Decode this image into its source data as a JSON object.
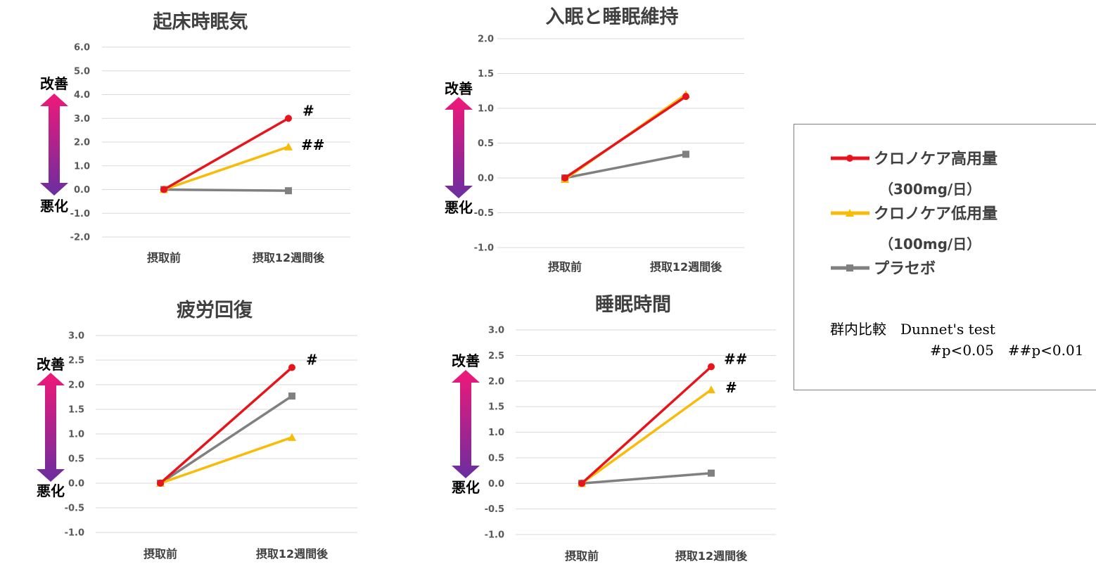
{
  "colors": {
    "high": "#e8141c",
    "low": "#f8bb07",
    "placebo": "#808080",
    "arrow_top": "#f01878",
    "arrow_bottom": "#6a2ea0",
    "grid": "#d9d9d9"
  },
  "annotations": {
    "up": "改善",
    "down": "悪化"
  },
  "legend": {
    "items": [
      {
        "label": "クロノケア高用量",
        "sub": "（300mg/日）",
        "marker": "circle",
        "color": "#e8141c"
      },
      {
        "label": "クロノケア低用量",
        "sub": "（100mg/日）",
        "marker": "triangle",
        "color": "#f8bb07"
      },
      {
        "label": "プラセボ",
        "sub": "",
        "marker": "square",
        "color": "#808080"
      }
    ],
    "note_line1": "群内比較　Dunnet's test",
    "note_line2": "#p<0.05　##p<0.01"
  },
  "chart_data": [
    {
      "type": "line",
      "title": "起床時眠気",
      "categories": [
        "摂取前",
        "摂取12週間後"
      ],
      "ylim": [
        -2.0,
        6.0
      ],
      "ystep": 1.0,
      "series": [
        {
          "name": "クロノケア高用量",
          "values": [
            0.0,
            3.0
          ],
          "marker": "circle",
          "color": "#e8141c",
          "sig": "#"
        },
        {
          "name": "クロノケア低用量",
          "values": [
            0.0,
            1.8
          ],
          "marker": "triangle",
          "color": "#f8bb07",
          "sig": "##"
        },
        {
          "name": "プラセボ",
          "values": [
            0.0,
            -0.05
          ],
          "marker": "square",
          "color": "#808080",
          "sig": ""
        }
      ]
    },
    {
      "type": "line",
      "title": "入眠と睡眠維持",
      "categories": [
        "摂取前",
        "摂取12週間後"
      ],
      "ylim": [
        -1.0,
        2.0
      ],
      "ystep": 0.5,
      "series": [
        {
          "name": "クロノケア高用量",
          "values": [
            0.0,
            1.17
          ],
          "marker": "circle",
          "color": "#e8141c",
          "sig": ""
        },
        {
          "name": "クロノケア低用量",
          "values": [
            -0.02,
            1.2
          ],
          "marker": "triangle",
          "color": "#f8bb07",
          "sig": ""
        },
        {
          "name": "プラセボ",
          "values": [
            0.0,
            0.34
          ],
          "marker": "square",
          "color": "#808080",
          "sig": ""
        }
      ]
    },
    {
      "type": "line",
      "title": "疲労回復",
      "categories": [
        "摂取前",
        "摂取12週間後"
      ],
      "ylim": [
        -1.0,
        3.0
      ],
      "ystep": 0.5,
      "series": [
        {
          "name": "クロノケア高用量",
          "values": [
            0.0,
            2.35
          ],
          "marker": "circle",
          "color": "#e8141c",
          "sig": "#"
        },
        {
          "name": "クロノケア低用量",
          "values": [
            0.0,
            0.93
          ],
          "marker": "triangle",
          "color": "#f8bb07",
          "sig": ""
        },
        {
          "name": "プラセボ",
          "values": [
            0.0,
            1.77
          ],
          "marker": "square",
          "color": "#808080",
          "sig": ""
        }
      ]
    },
    {
      "type": "line",
      "title": "睡眠時間",
      "categories": [
        "摂取前",
        "摂取12週間後"
      ],
      "ylim": [
        -1.0,
        3.0
      ],
      "ystep": 0.5,
      "series": [
        {
          "name": "クロノケア高用量",
          "values": [
            0.0,
            2.28
          ],
          "marker": "circle",
          "color": "#e8141c",
          "sig": "##"
        },
        {
          "name": "クロノケア低用量",
          "values": [
            0.0,
            1.83
          ],
          "marker": "triangle",
          "color": "#f8bb07",
          "sig": "#"
        },
        {
          "name": "プラセボ",
          "values": [
            0.0,
            0.2
          ],
          "marker": "square",
          "color": "#808080",
          "sig": ""
        }
      ]
    }
  ]
}
